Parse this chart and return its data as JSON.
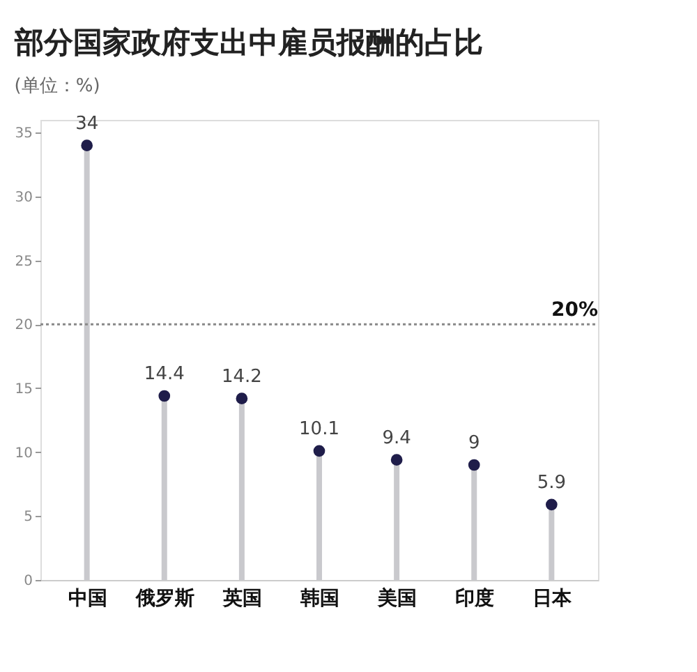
{
  "chart_data": {
    "type": "lollipop",
    "title": "部分国家政府支出中雇员报酬的占比",
    "subtitle": "(单位：%)",
    "categories": [
      "中国",
      "俄罗斯",
      "英国",
      "韩国",
      "美国",
      "印度",
      "日本"
    ],
    "values": [
      34,
      14.4,
      14.2,
      10.1,
      9.4,
      9,
      5.9
    ],
    "color": "#1f1d4a",
    "ylim": [
      0,
      36
    ],
    "yticks": [
      0,
      5,
      10,
      15,
      20,
      25,
      30,
      35
    ],
    "data_labels": true,
    "marker": "circle",
    "grid": false,
    "ref_lines": [
      {
        "axis": "y",
        "value": 20,
        "label": "20%",
        "color": "#888888",
        "line_style": "dotted"
      }
    ]
  }
}
